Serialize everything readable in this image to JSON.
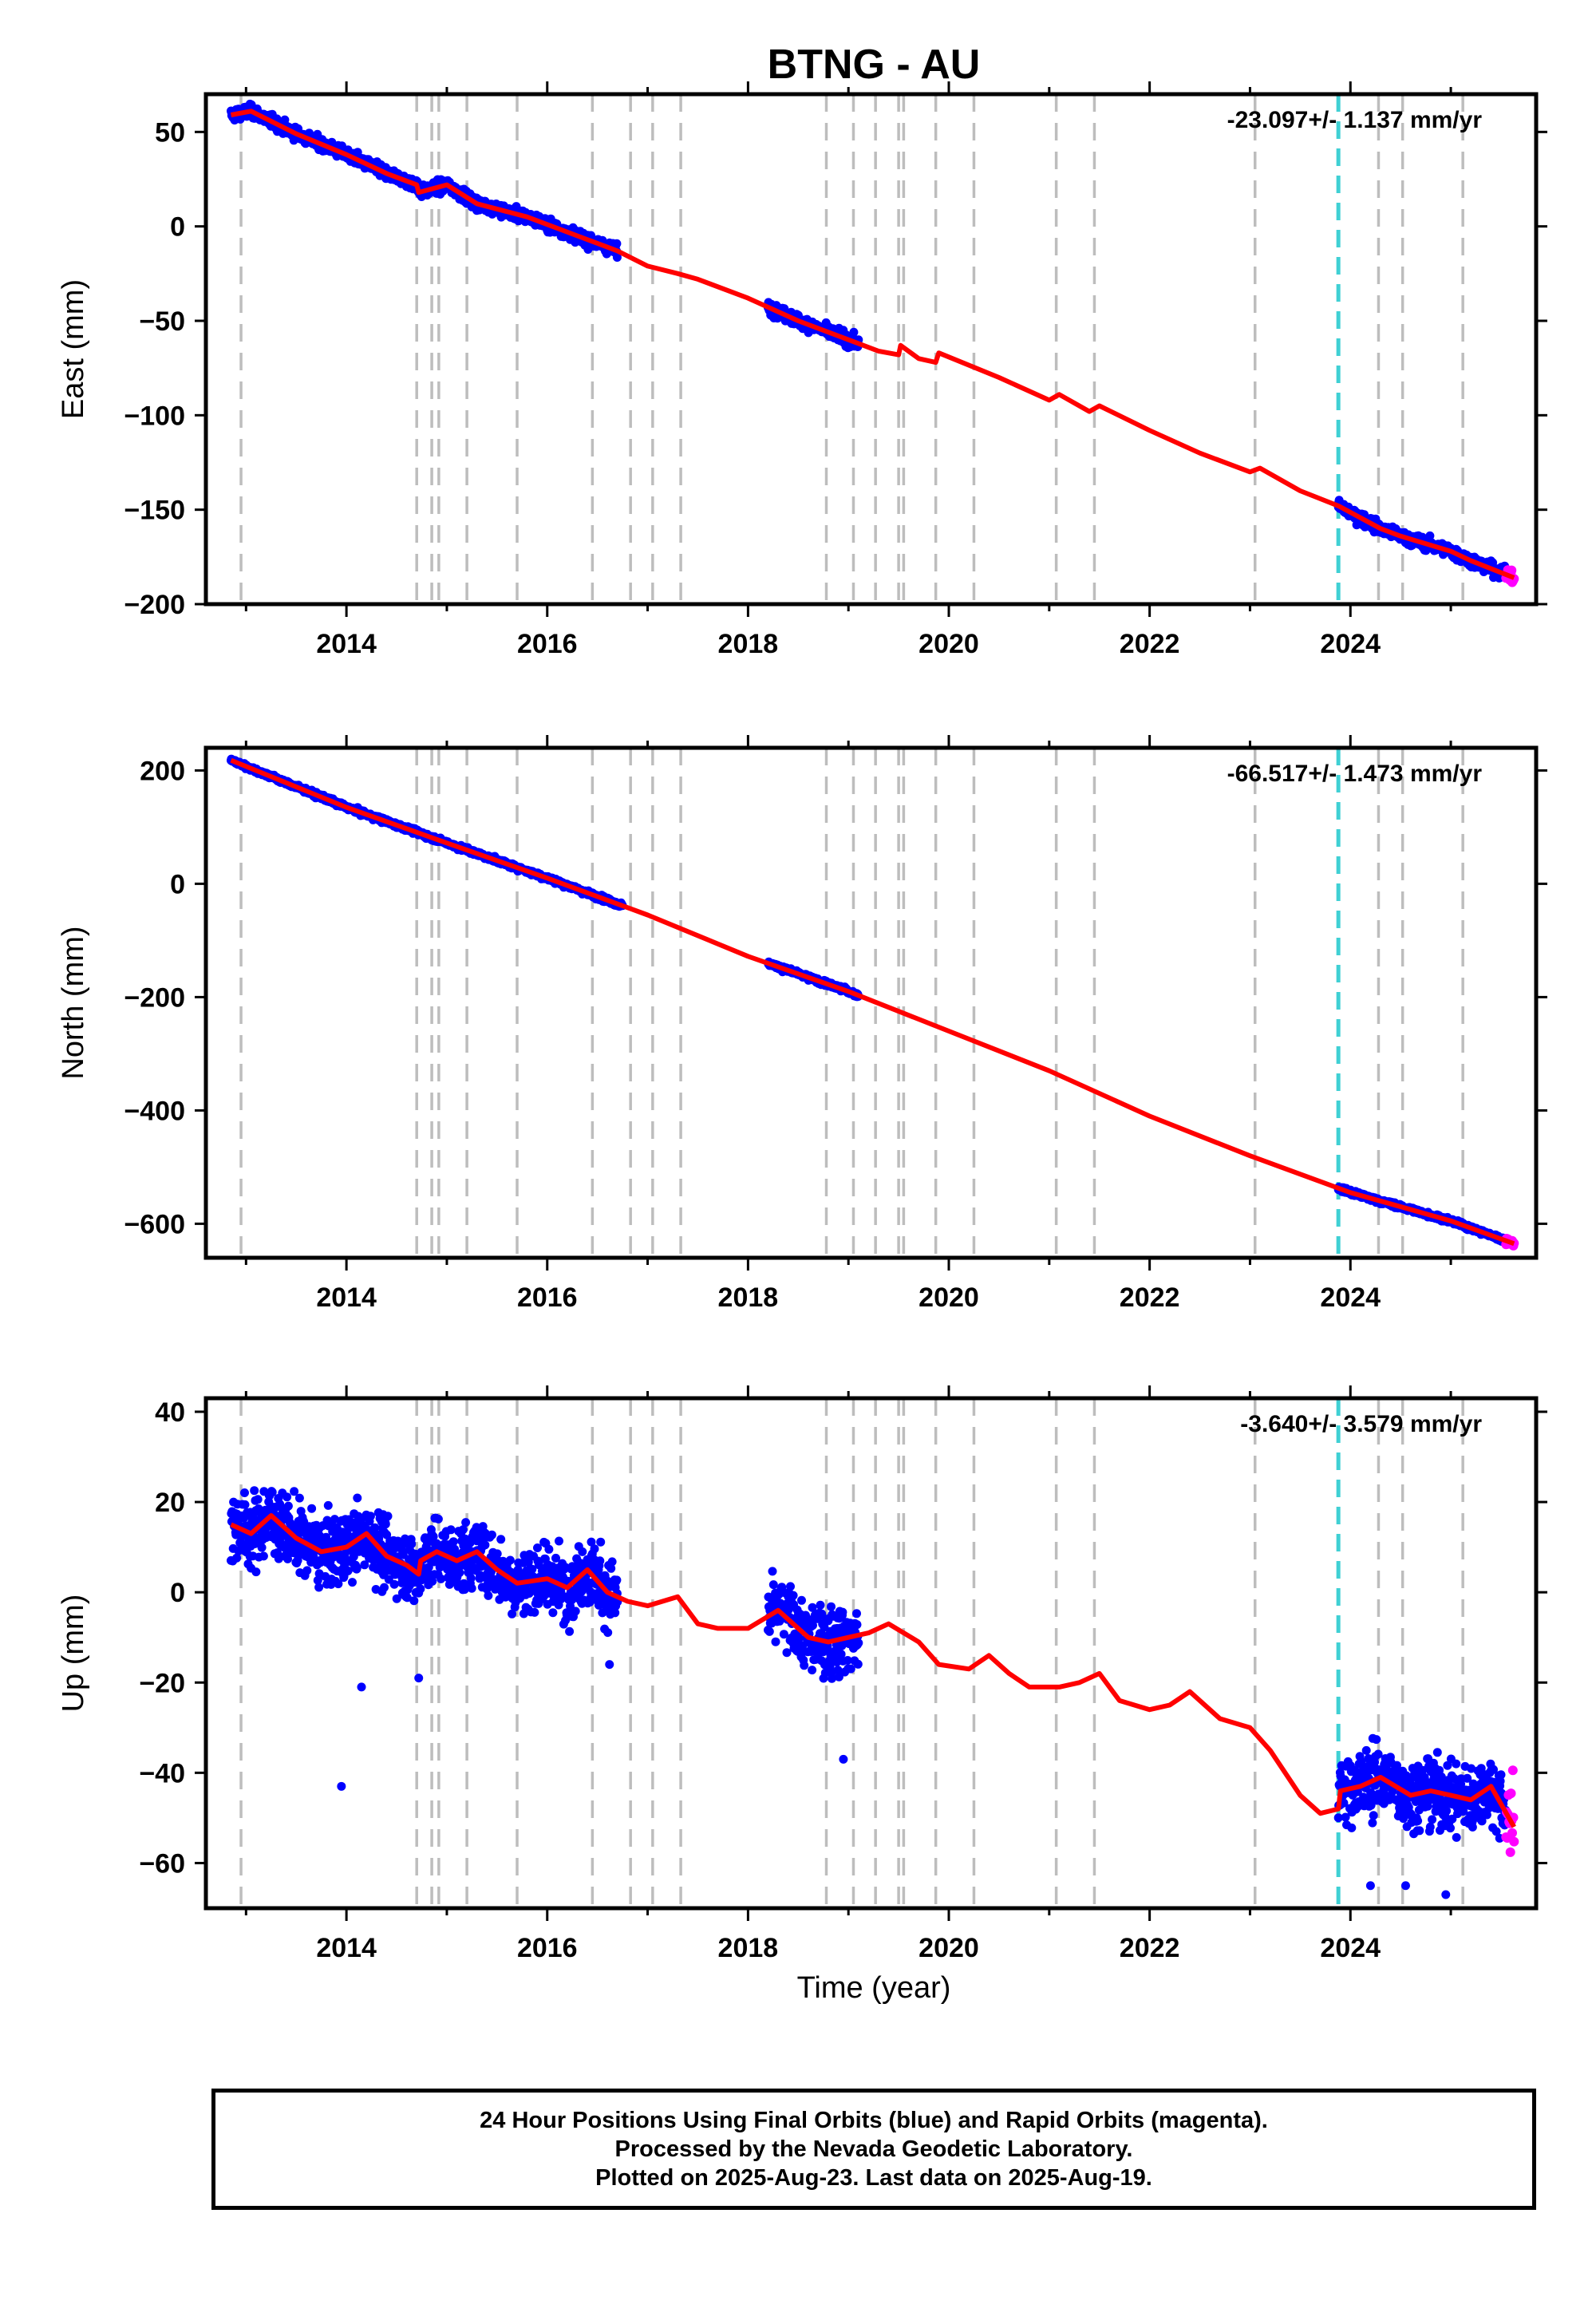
{
  "figure_title": "BTNG - AU",
  "xlabel": "Time (year)",
  "colors": {
    "final": "#0000ff",
    "rapid": "#ff00ff",
    "model": "#ff0000",
    "event_line": "#bdbdbd",
    "highlight_line": "#3fd0d4"
  },
  "event_years": [
    2012.95,
    2014.7,
    2014.85,
    2014.92,
    2015.2,
    2015.7,
    2016.45,
    2016.83,
    2017.05,
    2017.33,
    2018.78,
    2019.05,
    2019.27,
    2019.5,
    2019.55,
    2019.87,
    2020.25,
    2021.07,
    2021.45,
    2023.05,
    2024.28,
    2024.52,
    2025.12
  ],
  "highlight_year": 2023.88,
  "footer": {
    "line1": "24 Hour Positions Using Final Orbits (blue) and Rapid Orbits (magenta).",
    "line2": "Processed by the Nevada Geodetic Laboratory.",
    "line3": "Plotted on 2025-Aug-23. Last data on 2025-Aug-19."
  },
  "chart_data": [
    {
      "type": "scatter",
      "id": "east",
      "ylabel": "East (mm)",
      "rate_label": "-23.097+/- 1.137 mm/yr",
      "xlim": [
        2012.6,
        2025.85
      ],
      "ylim": [
        -200,
        70
      ],
      "x_ticks": [
        2014,
        2016,
        2018,
        2020,
        2022,
        2024
      ],
      "x_tick_labels": [
        "2014",
        "2016",
        "2018",
        "2020",
        "2022",
        "2024"
      ],
      "y_ticks": [
        -200,
        -150,
        -100,
        -50,
        0,
        50
      ],
      "y_tick_labels": [
        "−200",
        "−150",
        "−100",
        "−50",
        "0",
        "50"
      ],
      "data_segments": [
        [
          2012.85,
          2016.7
        ],
        [
          2018.2,
          2019.1
        ],
        [
          2023.88,
          2025.55
        ]
      ],
      "rapid_range": [
        2025.55,
        2025.63
      ],
      "scatter": 3,
      "series": [
        {
          "kind": "model",
          "x": [
            2012.85,
            2013.05,
            2013.5,
            2014.0,
            2014.4,
            2014.7,
            2014.72,
            2015.0,
            2015.3,
            2015.8,
            2016.3,
            2016.7,
            2017.0,
            2017.3,
            2017.5,
            2018.0,
            2018.5,
            2019.0,
            2019.3,
            2019.5,
            2019.52,
            2019.7,
            2019.87,
            2019.9,
            2020.5,
            2021.0,
            2021.1,
            2021.4,
            2021.5,
            2022.0,
            2022.5,
            2023.0,
            2023.1,
            2023.5,
            2023.88,
            2024.3,
            2024.5,
            2025.0,
            2025.2,
            2025.63
          ],
          "y": [
            59,
            61,
            49,
            38,
            28,
            22,
            18,
            22,
            12,
            5,
            -5,
            -13,
            -21,
            -25,
            -28,
            -38,
            -50,
            -60,
            -66,
            -68,
            -63,
            -70,
            -72,
            -67,
            -80,
            -92,
            -89,
            -98,
            -95,
            -108,
            -120,
            -130,
            -128,
            -140,
            -148,
            -160,
            -164,
            -172,
            -177,
            -186
          ]
        }
      ]
    },
    {
      "type": "scatter",
      "id": "north",
      "ylabel": "North (mm)",
      "rate_label": "-66.517+/- 1.473 mm/yr",
      "xlim": [
        2012.6,
        2025.85
      ],
      "ylim": [
        -660,
        240
      ],
      "x_ticks": [
        2014,
        2016,
        2018,
        2020,
        2022,
        2024
      ],
      "x_tick_labels": [
        "2014",
        "2016",
        "2018",
        "2020",
        "2022",
        "2024"
      ],
      "y_ticks": [
        -600,
        -400,
        -200,
        0,
        200
      ],
      "y_tick_labels": [
        "−600",
        "−400",
        "−200",
        "0",
        "200"
      ],
      "data_segments": [
        [
          2012.85,
          2016.75
        ],
        [
          2018.2,
          2019.1
        ],
        [
          2023.88,
          2025.55
        ]
      ],
      "rapid_range": [
        2025.55,
        2025.63
      ],
      "scatter": 4,
      "series": [
        {
          "kind": "model",
          "x": [
            2012.85,
            2014.0,
            2015.0,
            2016.0,
            2017.0,
            2018.0,
            2019.0,
            2020.0,
            2021.0,
            2022.0,
            2023.0,
            2024.0,
            2025.0,
            2025.63
          ],
          "y": [
            218,
            135,
            72,
            10,
            -55,
            -128,
            -190,
            -260,
            -330,
            -410,
            -480,
            -545,
            -595,
            -635
          ]
        }
      ]
    },
    {
      "type": "scatter",
      "id": "up",
      "ylabel": "Up (mm)",
      "rate_label": "-3.640+/- 3.579 mm/yr",
      "xlim": [
        2012.6,
        2025.85
      ],
      "ylim": [
        -70,
        43
      ],
      "x_ticks": [
        2014,
        2016,
        2018,
        2020,
        2022,
        2024
      ],
      "x_tick_labels": [
        "2014",
        "2016",
        "2018",
        "2020",
        "2022",
        "2024"
      ],
      "y_ticks": [
        -60,
        -40,
        -20,
        0,
        20,
        40
      ],
      "y_tick_labels": [
        "−60",
        "−40",
        "−20",
        "0",
        "20",
        "40"
      ],
      "data_segments": [
        [
          2012.85,
          2016.7
        ],
        [
          2018.2,
          2019.1
        ],
        [
          2023.88,
          2025.55
        ]
      ],
      "rapid_range": [
        2025.55,
        2025.63
      ],
      "scatter": 7,
      "outliers": [
        [
          2013.95,
          -43
        ],
        [
          2014.15,
          -21
        ],
        [
          2014.72,
          -19
        ],
        [
          2016.62,
          -16
        ],
        [
          2018.95,
          -37
        ],
        [
          2024.2,
          -65
        ],
        [
          2024.55,
          -65
        ],
        [
          2024.95,
          -67
        ]
      ],
      "series": [
        {
          "kind": "model",
          "x": [
            2012.85,
            2013.05,
            2013.25,
            2013.5,
            2013.75,
            2014.0,
            2014.2,
            2014.4,
            2014.6,
            2014.72,
            2014.74,
            2014.9,
            2015.1,
            2015.3,
            2015.5,
            2015.7,
            2016.0,
            2016.2,
            2016.4,
            2016.6,
            2016.8,
            2017.0,
            2017.3,
            2017.5,
            2017.7,
            2018.0,
            2018.3,
            2018.6,
            2018.8,
            2019.0,
            2019.2,
            2019.4,
            2019.7,
            2019.9,
            2020.2,
            2020.4,
            2020.6,
            2020.8,
            2021.1,
            2021.3,
            2021.5,
            2021.7,
            2022.0,
            2022.2,
            2022.4,
            2022.7,
            2023.0,
            2023.2,
            2023.5,
            2023.7,
            2023.88,
            2023.9,
            2024.1,
            2024.3,
            2024.6,
            2024.8,
            2025.0,
            2025.2,
            2025.4,
            2025.63
          ],
          "y": [
            15,
            13,
            17,
            12,
            9,
            10,
            13,
            8,
            6,
            4,
            7,
            9,
            7,
            9,
            5,
            2,
            3,
            1,
            5,
            0,
            -2,
            -3,
            -1,
            -7,
            -8,
            -8,
            -4,
            -10,
            -11,
            -10,
            -9,
            -7,
            -11,
            -16,
            -17,
            -14,
            -18,
            -21,
            -21,
            -20,
            -18,
            -24,
            -26,
            -25,
            -22,
            -28,
            -30,
            -35,
            -45,
            -49,
            -48,
            -44,
            -43,
            -41,
            -45,
            -44,
            -45,
            -46,
            -43,
            -52
          ]
        }
      ]
    }
  ]
}
